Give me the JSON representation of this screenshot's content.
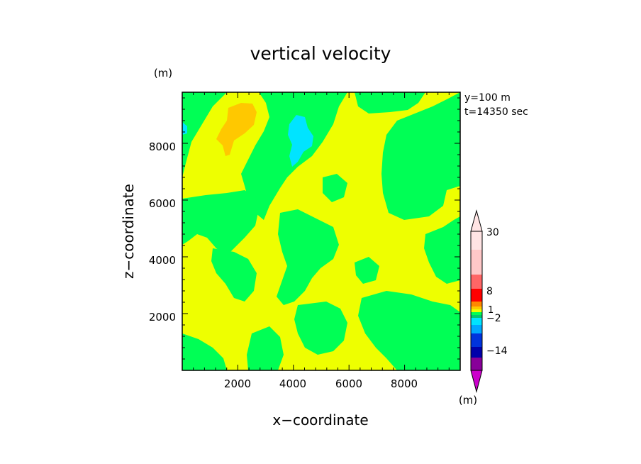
{
  "chart_data": {
    "type": "heatmap",
    "title": "vertical velocity",
    "xlabel": "x−coordinate",
    "ylabel": "z−coordinate",
    "x_unit": "(m)",
    "y_unit": "(m)",
    "colorbar_unit": "(m)",
    "info_lines": [
      "y=100  m",
      "t=14350  sec"
    ],
    "xlim": [
      0,
      10000
    ],
    "ylim": [
      0,
      9800
    ],
    "x_ticks": [
      2000,
      4000,
      6000,
      8000
    ],
    "y_ticks": [
      2000,
      4000,
      6000,
      8000
    ],
    "x_tick_labels": [
      "2000",
      "4000",
      "6000",
      "8000"
    ],
    "y_tick_labels": [
      "2000",
      "4000",
      "6000",
      "8000"
    ],
    "colorbar": {
      "labels": [
        "30",
        "8",
        "1",
        "−2",
        "−14"
      ],
      "colors": [
        "#cc00cc",
        "#880099",
        "#0000aa",
        "#0033dd",
        "#00a8ff",
        "#00e4ff",
        "#00c870",
        "#00ff55",
        "#eeff00",
        "#ffc800",
        "#ff8800",
        "#ff0000",
        "#ff6666",
        "#ffc8c8",
        "#ffe4e4"
      ]
    },
    "field_summary": "dominantly near-zero vertical velocity (green/yellow bands) with small weak positive maximum (orange) near x=2400 m, z=9000 m and small negative minimum (cyan) near x=4200 m, z=8700 m"
  }
}
